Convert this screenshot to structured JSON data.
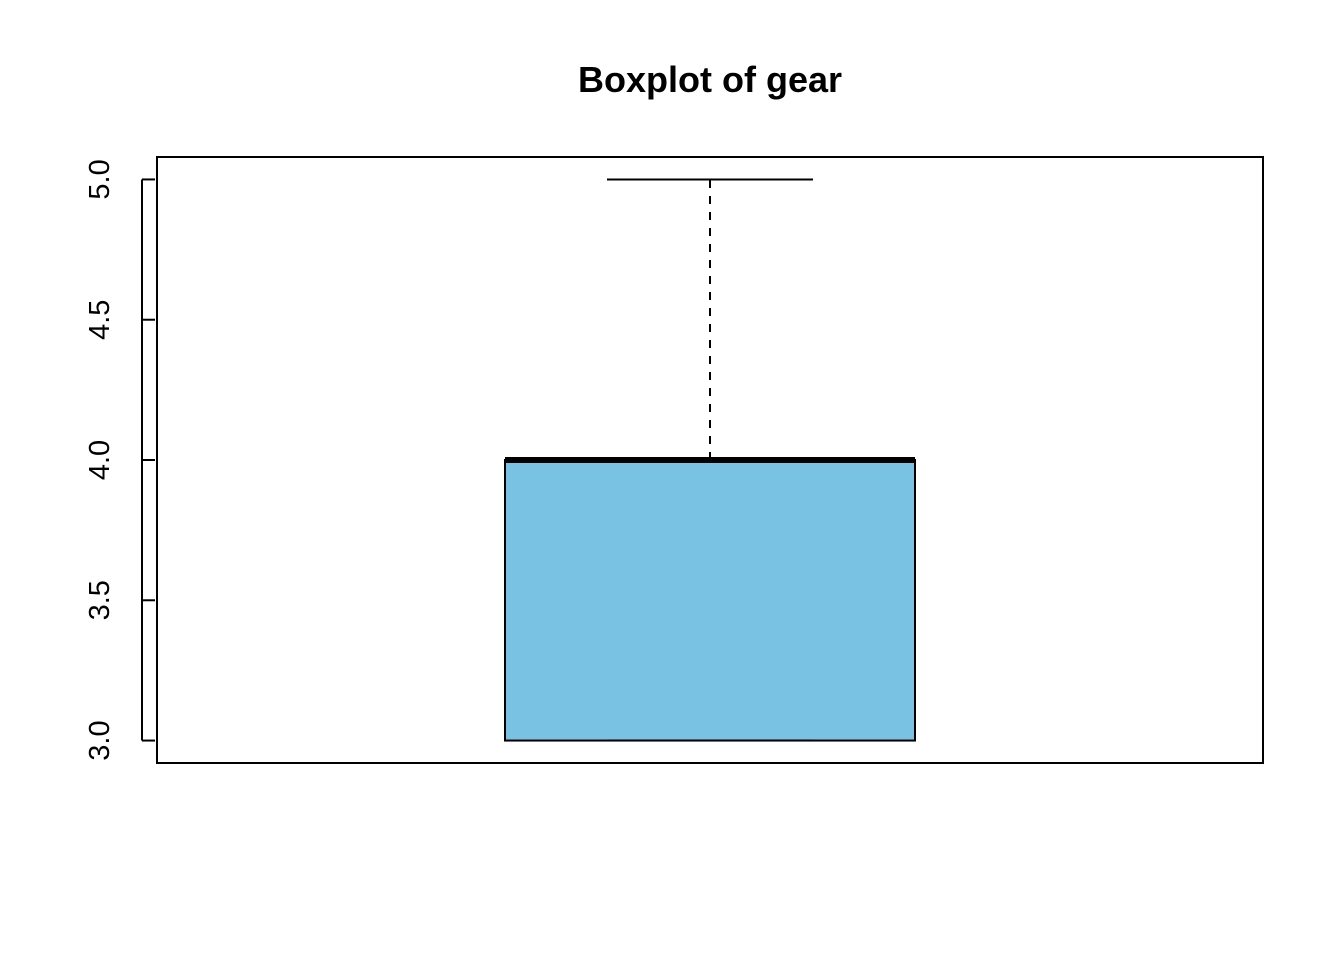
{
  "chart_data": {
    "type": "boxplot",
    "title": "Boxplot of gear",
    "xlabel": "",
    "ylabel": "",
    "ylim": [
      2.92,
      5.08
    ],
    "yticks": [
      3.0,
      3.5,
      4.0,
      4.5,
      5.0
    ],
    "ytick_labels": [
      "3.0",
      "3.5",
      "4.0",
      "4.5",
      "5.0"
    ],
    "boxes": [
      {
        "min": 3.0,
        "q1": 3.0,
        "median": 4.0,
        "q3": 4.0,
        "max": 5.0
      }
    ],
    "box_color": "#7AC2E4",
    "grid": false
  }
}
